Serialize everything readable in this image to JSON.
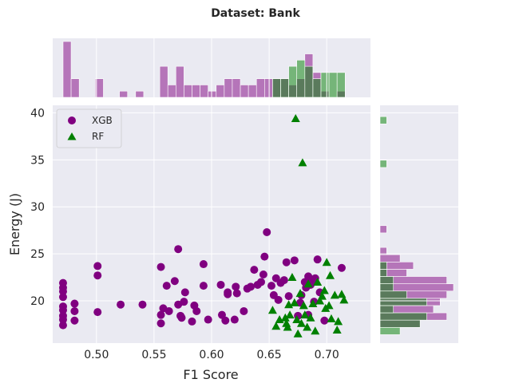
{
  "chart_data": {
    "type": "scatter",
    "title": "Dataset: Bank",
    "xlabel": "F1 Score",
    "ylabel": "Energy (J)",
    "xlim": [
      0.462,
      0.738
    ],
    "ylim": [
      15.5,
      40.8
    ],
    "xticks": [
      0.5,
      0.55,
      0.6,
      0.65,
      0.7
    ],
    "xtick_labels": [
      "0.50",
      "0.55",
      "0.60",
      "0.65",
      "0.70"
    ],
    "yticks": [
      20,
      25,
      30,
      35,
      40
    ],
    "ytick_labels": [
      "20",
      "25",
      "30",
      "35",
      "40"
    ],
    "grid": true,
    "legend_position": "top-left",
    "marginals": "histograms",
    "series": [
      {
        "name": "XGB",
        "color": "#800080",
        "marker": "circle",
        "x": [
          0.471,
          0.471,
          0.471,
          0.471,
          0.471,
          0.471,
          0.471,
          0.471,
          0.471,
          0.481,
          0.481,
          0.481,
          0.501,
          0.501,
          0.501,
          0.521,
          0.54,
          0.556,
          0.556,
          0.556,
          0.558,
          0.561,
          0.563,
          0.568,
          0.571,
          0.571,
          0.573,
          0.574,
          0.576,
          0.577,
          0.583,
          0.585,
          0.587,
          0.593,
          0.593,
          0.597,
          0.608,
          0.609,
          0.612,
          0.614,
          0.614,
          0.62,
          0.621,
          0.622,
          0.628,
          0.631,
          0.634,
          0.637,
          0.64,
          0.643,
          0.645,
          0.646,
          0.648,
          0.652,
          0.654,
          0.656,
          0.658,
          0.66,
          0.663,
          0.665,
          0.667,
          0.672,
          0.675,
          0.677,
          0.678,
          0.681,
          0.682,
          0.684,
          0.684,
          0.686,
          0.686,
          0.688,
          0.689,
          0.69,
          0.692,
          0.694,
          0.698,
          0.713
        ],
        "y": [
          17.4,
          18.0,
          18.4,
          19.0,
          19.4,
          20.4,
          21.0,
          21.4,
          21.9,
          17.9,
          18.9,
          19.7,
          18.8,
          22.7,
          23.7,
          19.6,
          19.6,
          17.6,
          23.6,
          18.5,
          19.2,
          21.6,
          18.9,
          22.1,
          19.6,
          25.5,
          18.4,
          18.2,
          19.9,
          20.9,
          17.8,
          19.5,
          18.9,
          21.6,
          23.9,
          18.0,
          21.7,
          18.5,
          17.9,
          20.7,
          20.9,
          18.0,
          21.5,
          20.8,
          18.9,
          21.3,
          21.5,
          23.3,
          21.7,
          22.0,
          22.8,
          24.7,
          27.3,
          21.6,
          20.6,
          22.4,
          20.1,
          21.9,
          22.2,
          24.1,
          20.5,
          24.3,
          18.4,
          19.8,
          20.6,
          22.0,
          21.4,
          22.6,
          18.5,
          21.7,
          22.0,
          22.0,
          19.9,
          22.4,
          24.4,
          20.9,
          17.9,
          23.5
        ]
      },
      {
        "name": "RF",
        "color": "#008000",
        "marker": "triangle",
        "x": [
          0.653,
          0.656,
          0.659,
          0.664,
          0.665,
          0.666,
          0.667,
          0.668,
          0.67,
          0.672,
          0.673,
          0.674,
          0.675,
          0.677,
          0.678,
          0.679,
          0.68,
          0.681,
          0.683,
          0.684,
          0.686,
          0.688,
          0.69,
          0.692,
          0.694,
          0.696,
          0.698,
          0.699,
          0.7,
          0.702,
          0.703,
          0.704,
          0.707,
          0.709,
          0.71,
          0.713,
          0.715
        ],
        "y": [
          19.0,
          17.3,
          18.0,
          18.2,
          17.6,
          17.2,
          19.6,
          18.5,
          22.5,
          19.8,
          39.4,
          18.0,
          16.5,
          20.8,
          17.6,
          34.7,
          19.5,
          18.5,
          17.2,
          21.8,
          18.2,
          19.7,
          16.8,
          22.0,
          20.0,
          20.5,
          21.1,
          19.2,
          24.1,
          19.5,
          22.7,
          18.1,
          20.6,
          16.9,
          17.8,
          20.7,
          20.1
        ]
      }
    ]
  }
}
